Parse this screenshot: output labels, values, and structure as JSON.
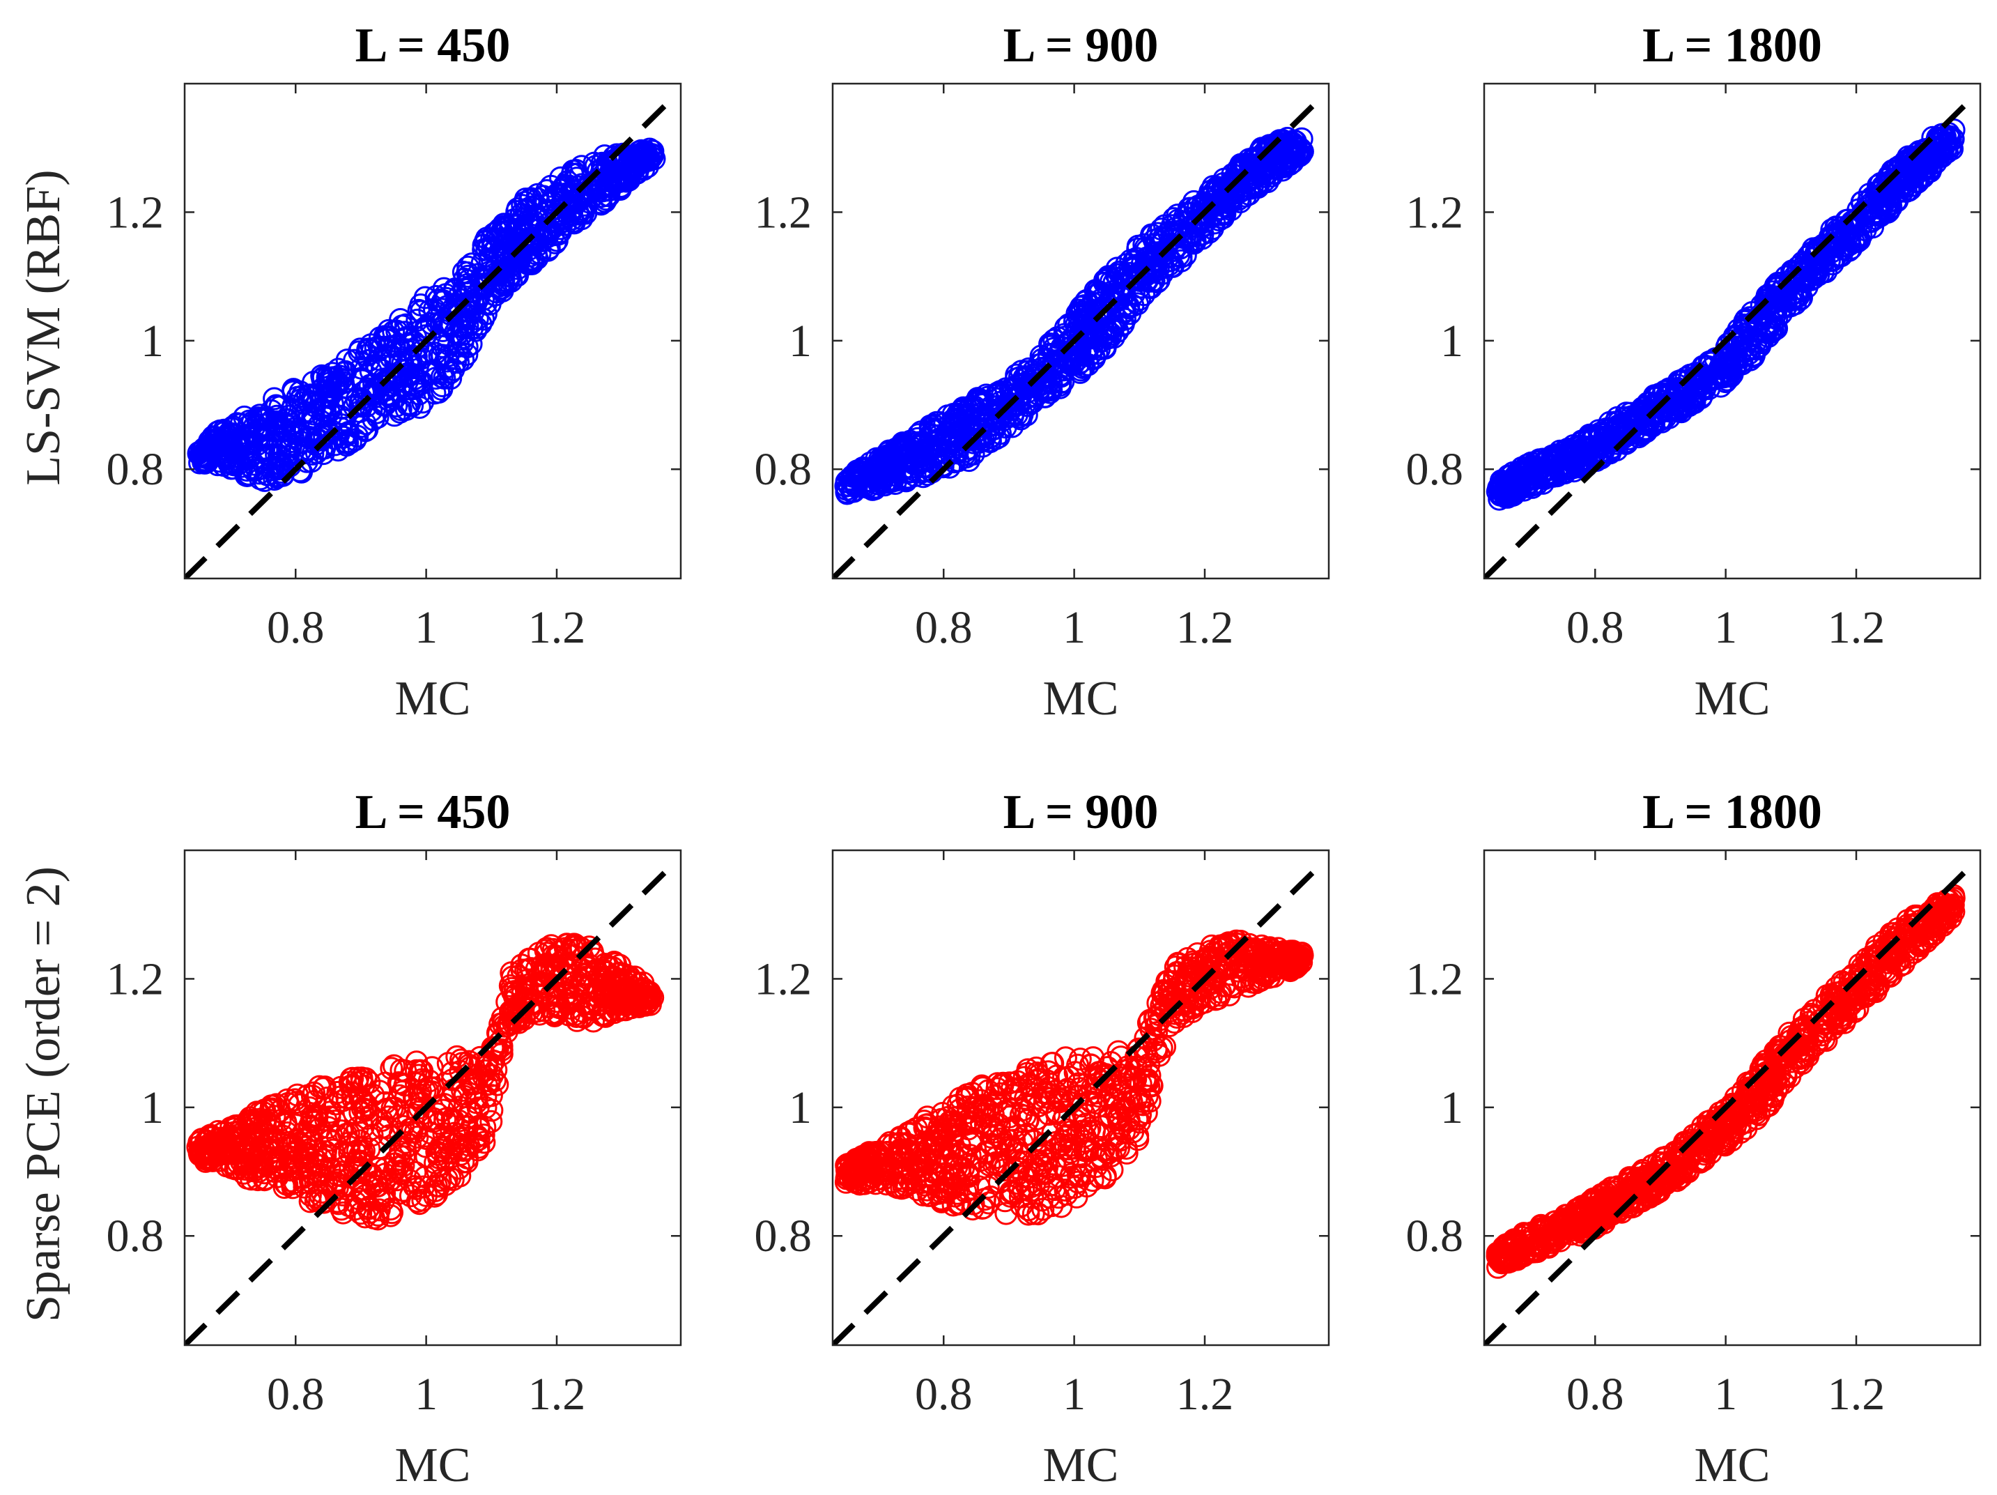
{
  "figure": {
    "x_axis_label": "MC",
    "row_labels": [
      "LS-SVM (RBF)",
      "Sparse PCE (order = 2)"
    ],
    "colors": {
      "top_row": "#0000ff",
      "bottom_row": "#ff0000",
      "reference_line": "#000000"
    }
  },
  "chart_data": [
    {
      "type": "scatter",
      "title": "L = 450",
      "xlabel": "MC",
      "ylabel": "LS-SVM (RBF)",
      "xlim": [
        0.63,
        1.39
      ],
      "ylim": [
        0.63,
        1.4
      ],
      "xticks": [
        0.8,
        1,
        1.2
      ],
      "xtick_labels": [
        "0.8",
        "1",
        "1.2"
      ],
      "yticks": [
        0.8,
        1,
        1.2
      ],
      "ytick_labels": [
        "0.8",
        "1",
        "1.2"
      ],
      "color": "#0000ff",
      "reference_line": "y = x",
      "band": {
        "x": [
          0.65,
          0.7,
          0.75,
          0.8,
          0.85,
          0.9,
          0.95,
          1.0,
          1.05,
          1.1,
          1.15,
          1.2,
          1.25,
          1.28,
          1.35
        ],
        "y_low": [
          0.81,
          0.8,
          0.78,
          0.79,
          0.82,
          0.85,
          0.88,
          0.9,
          0.95,
          1.06,
          1.11,
          1.15,
          1.2,
          1.22,
          1.28
        ],
        "y_high": [
          0.84,
          0.87,
          0.9,
          0.93,
          0.95,
          0.99,
          1.03,
          1.07,
          1.1,
          1.17,
          1.22,
          1.25,
          1.28,
          1.29,
          1.3
        ]
      }
    },
    {
      "type": "scatter",
      "title": "L = 900",
      "xlabel": "MC",
      "ylabel": "",
      "xlim": [
        0.63,
        1.39
      ],
      "ylim": [
        0.63,
        1.4
      ],
      "xticks": [
        0.8,
        1,
        1.2
      ],
      "xtick_labels": [
        "0.8",
        "1",
        "1.2"
      ],
      "yticks": [
        0.8,
        1,
        1.2
      ],
      "ytick_labels": [
        "0.8",
        "1",
        "1.2"
      ],
      "color": "#0000ff",
      "reference_line": "y = x",
      "band": {
        "x": [
          0.65,
          0.7,
          0.75,
          0.8,
          0.85,
          0.9,
          0.95,
          1.0,
          1.05,
          1.1,
          1.15,
          1.2,
          1.25,
          1.3,
          1.35
        ],
        "y_low": [
          0.76,
          0.77,
          0.78,
          0.79,
          0.82,
          0.86,
          0.9,
          0.94,
          0.99,
          1.06,
          1.11,
          1.16,
          1.21,
          1.25,
          1.29
        ],
        "y_high": [
          0.79,
          0.82,
          0.85,
          0.88,
          0.91,
          0.94,
          0.98,
          1.04,
          1.1,
          1.15,
          1.19,
          1.23,
          1.27,
          1.31,
          1.32
        ]
      }
    },
    {
      "type": "scatter",
      "title": "L = 1800",
      "xlabel": "MC",
      "ylabel": "",
      "xlim": [
        0.63,
        1.39
      ],
      "ylim": [
        0.63,
        1.4
      ],
      "xticks": [
        0.8,
        1,
        1.2
      ],
      "xtick_labels": [
        "0.8",
        "1",
        "1.2"
      ],
      "yticks": [
        0.8,
        1,
        1.2
      ],
      "ytick_labels": [
        "0.8",
        "1",
        "1.2"
      ],
      "color": "#0000ff",
      "reference_line": "y = x",
      "band": {
        "x": [
          0.65,
          0.7,
          0.75,
          0.8,
          0.85,
          0.9,
          0.95,
          1.0,
          1.05,
          1.1,
          1.15,
          1.2,
          1.25,
          1.3,
          1.35
        ],
        "y_low": [
          0.75,
          0.77,
          0.79,
          0.81,
          0.84,
          0.87,
          0.9,
          0.93,
          0.98,
          1.05,
          1.1,
          1.15,
          1.2,
          1.25,
          1.3
        ],
        "y_high": [
          0.78,
          0.81,
          0.83,
          0.86,
          0.89,
          0.92,
          0.95,
          0.99,
          1.06,
          1.11,
          1.16,
          1.21,
          1.26,
          1.31,
          1.33
        ]
      }
    },
    {
      "type": "scatter",
      "title": "L = 450",
      "xlabel": "MC",
      "ylabel": "Sparse PCE (order = 2)",
      "xlim": [
        0.63,
        1.39
      ],
      "ylim": [
        0.63,
        1.4
      ],
      "xticks": [
        0.8,
        1,
        1.2
      ],
      "xtick_labels": [
        "0.8",
        "1",
        "1.2"
      ],
      "yticks": [
        0.8,
        1,
        1.2
      ],
      "ytick_labels": [
        "0.8",
        "1",
        "1.2"
      ],
      "color": "#ff0000",
      "reference_line": "y = x",
      "band": {
        "x": [
          0.65,
          0.7,
          0.75,
          0.8,
          0.85,
          0.9,
          0.95,
          1.0,
          1.05,
          1.1,
          1.12,
          1.15,
          1.2,
          1.25,
          1.3,
          1.35
        ],
        "y_low": [
          0.92,
          0.9,
          0.88,
          0.86,
          0.84,
          0.82,
          0.83,
          0.85,
          0.89,
          0.96,
          1.11,
          1.13,
          1.14,
          1.13,
          1.15,
          1.16
        ],
        "y_high": [
          0.95,
          0.97,
          1.0,
          1.02,
          1.04,
          1.05,
          1.07,
          1.08,
          1.08,
          1.09,
          1.2,
          1.23,
          1.26,
          1.25,
          1.22,
          1.18
        ]
      }
    },
    {
      "type": "scatter",
      "title": "L = 900",
      "xlabel": "MC",
      "ylabel": "",
      "xlim": [
        0.63,
        1.39
      ],
      "ylim": [
        0.63,
        1.4
      ],
      "xticks": [
        0.8,
        1,
        1.2
      ],
      "xtick_labels": [
        "0.8",
        "1",
        "1.2"
      ],
      "yticks": [
        0.8,
        1,
        1.2
      ],
      "ytick_labels": [
        "0.8",
        "1",
        "1.2"
      ],
      "color": "#ff0000",
      "reference_line": "y = x",
      "band": {
        "x": [
          0.65,
          0.7,
          0.75,
          0.8,
          0.85,
          0.9,
          0.95,
          1.0,
          1.05,
          1.1,
          1.15,
          1.2,
          1.25,
          1.3,
          1.35
        ],
        "y_low": [
          0.88,
          0.88,
          0.87,
          0.85,
          0.84,
          0.83,
          0.83,
          0.85,
          0.89,
          0.95,
          1.13,
          1.16,
          1.18,
          1.2,
          1.22
        ],
        "y_high": [
          0.91,
          0.94,
          0.97,
          1.0,
          1.03,
          1.05,
          1.07,
          1.08,
          1.08,
          1.1,
          1.22,
          1.25,
          1.26,
          1.25,
          1.24
        ]
      }
    },
    {
      "type": "scatter",
      "title": "L = 1800",
      "xlabel": "MC",
      "ylabel": "",
      "xlim": [
        0.63,
        1.39
      ],
      "ylim": [
        0.63,
        1.4
      ],
      "xticks": [
        0.8,
        1,
        1.2
      ],
      "xtick_labels": [
        "0.8",
        "1",
        "1.2"
      ],
      "yticks": [
        0.8,
        1,
        1.2
      ],
      "ytick_labels": [
        "0.8",
        "1",
        "1.2"
      ],
      "color": "#ff0000",
      "reference_line": "y = x",
      "band": {
        "x": [
          0.65,
          0.7,
          0.75,
          0.8,
          0.85,
          0.9,
          0.95,
          1.0,
          1.05,
          1.1,
          1.15,
          1.2,
          1.25,
          1.3,
          1.35
        ],
        "y_low": [
          0.75,
          0.77,
          0.79,
          0.81,
          0.84,
          0.87,
          0.9,
          0.94,
          0.98,
          1.05,
          1.1,
          1.15,
          1.2,
          1.25,
          1.3
        ],
        "y_high": [
          0.78,
          0.81,
          0.83,
          0.86,
          0.89,
          0.92,
          0.96,
          1.0,
          1.06,
          1.12,
          1.17,
          1.22,
          1.27,
          1.31,
          1.33
        ]
      }
    }
  ]
}
